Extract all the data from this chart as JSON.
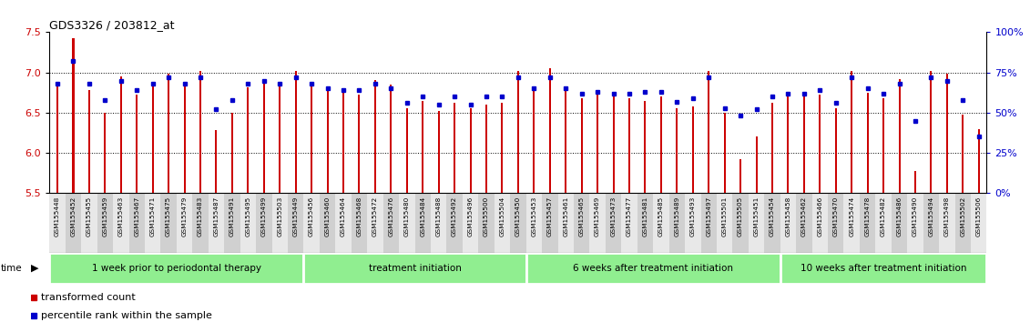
{
  "title": "GDS3326 / 203812_at",
  "ylim": [
    5.5,
    7.5
  ],
  "yticks": [
    5.5,
    6.0,
    6.5,
    7.0,
    7.5
  ],
  "right_yticks": [
    0,
    25,
    50,
    75,
    100
  ],
  "right_yticklabels": [
    "0%",
    "25%",
    "50%",
    "75%",
    "100%"
  ],
  "bar_color": "#cc0000",
  "dot_color": "#0000cc",
  "groups": [
    {
      "label": "1 week prior to periodontal therapy",
      "start": 0,
      "end": 16
    },
    {
      "label": "treatment initiation",
      "start": 16,
      "end": 30
    },
    {
      "label": "6 weeks after treatment initiation",
      "start": 30,
      "end": 46
    },
    {
      "label": "10 weeks after treatment initiation",
      "start": 46,
      "end": 59
    }
  ],
  "group_color": "#90EE90",
  "samples": [
    "GSM155448",
    "GSM155452",
    "GSM155455",
    "GSM155459",
    "GSM155463",
    "GSM155467",
    "GSM155471",
    "GSM155475",
    "GSM155479",
    "GSM155483",
    "GSM155487",
    "GSM155491",
    "GSM155495",
    "GSM155499",
    "GSM155503",
    "GSM155449",
    "GSM155456",
    "GSM155460",
    "GSM155464",
    "GSM155468",
    "GSM155472",
    "GSM155476",
    "GSM155480",
    "GSM155484",
    "GSM155488",
    "GSM155492",
    "GSM155496",
    "GSM155500",
    "GSM155504",
    "GSM155450",
    "GSM155453",
    "GSM155457",
    "GSM155461",
    "GSM155465",
    "GSM155469",
    "GSM155473",
    "GSM155477",
    "GSM155481",
    "GSM155485",
    "GSM155489",
    "GSM155493",
    "GSM155497",
    "GSM155501",
    "GSM155505",
    "GSM155451",
    "GSM155454",
    "GSM155458",
    "GSM155462",
    "GSM155466",
    "GSM155470",
    "GSM155474",
    "GSM155478",
    "GSM155482",
    "GSM155486",
    "GSM155490",
    "GSM155494",
    "GSM155498",
    "GSM155502",
    "GSM155506"
  ],
  "bar_values": [
    6.88,
    7.42,
    6.78,
    6.5,
    6.95,
    6.72,
    6.88,
    6.98,
    6.85,
    7.02,
    6.28,
    6.5,
    6.82,
    6.92,
    6.88,
    7.02,
    6.88,
    6.78,
    6.75,
    6.72,
    6.9,
    6.85,
    6.55,
    6.65,
    6.52,
    6.62,
    6.55,
    6.6,
    6.62,
    7.02,
    6.78,
    7.05,
    6.78,
    6.68,
    6.72,
    6.7,
    6.68,
    6.65,
    6.7,
    6.55,
    6.58,
    7.02,
    6.5,
    5.92,
    6.2,
    6.62,
    6.7,
    6.7,
    6.72,
    6.55,
    7.02,
    6.75,
    6.68,
    6.92,
    5.78,
    7.02,
    6.98,
    6.48,
    6.3
  ],
  "dot_percentiles": [
    68,
    82,
    68,
    58,
    70,
    64,
    68,
    72,
    68,
    72,
    52,
    58,
    68,
    70,
    68,
    72,
    68,
    65,
    64,
    64,
    68,
    65,
    56,
    60,
    55,
    60,
    55,
    60,
    60,
    72,
    65,
    72,
    65,
    62,
    63,
    62,
    62,
    63,
    63,
    57,
    59,
    72,
    53,
    48,
    52,
    60,
    62,
    62,
    64,
    56,
    72,
    65,
    62,
    68,
    45,
    72,
    70,
    58,
    35
  ],
  "legend": [
    {
      "label": "transformed count",
      "color": "#cc0000"
    },
    {
      "label": "percentile rank within the sample",
      "color": "#0000cc"
    }
  ],
  "cell_colors": [
    "#e8e8e8",
    "#d0d0d0"
  ]
}
